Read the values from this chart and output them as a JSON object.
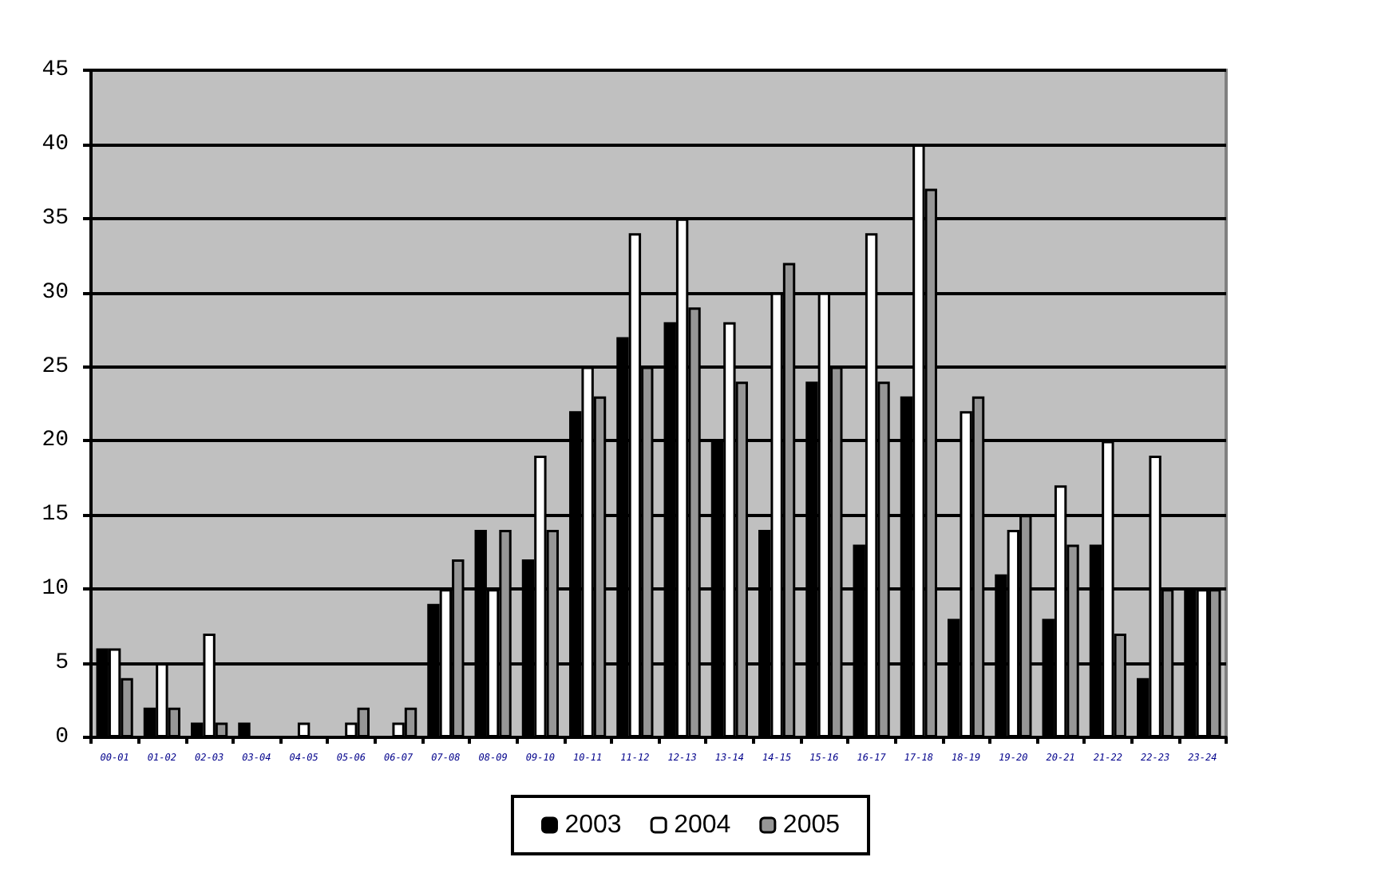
{
  "chart_data": {
    "type": "bar",
    "categories": [
      "00-01",
      "01-02",
      "02-03",
      "03-04",
      "04-05",
      "05-06",
      "06-07",
      "07-08",
      "08-09",
      "09-10",
      "10-11",
      "11-12",
      "12-13",
      "13-14",
      "14-15",
      "15-16",
      "16-17",
      "17-18",
      "18-19",
      "19-20",
      "20-21",
      "21-22",
      "22-23",
      "23-24"
    ],
    "series": [
      {
        "name": "2003",
        "color": "#000000",
        "values": [
          6,
          2,
          1,
          1,
          0,
          0,
          0,
          9,
          14,
          12,
          22,
          27,
          28,
          20,
          14,
          24,
          13,
          23,
          8,
          11,
          8,
          13,
          4,
          10
        ]
      },
      {
        "name": "2004",
        "color": "#ffffff",
        "values": [
          6,
          5,
          7,
          0,
          1,
          1,
          1,
          10,
          10,
          19,
          25,
          34,
          35,
          28,
          30,
          30,
          34,
          40,
          22,
          14,
          17,
          20,
          19,
          10
        ]
      },
      {
        "name": "2005",
        "color": "#969696",
        "values": [
          4,
          2,
          1,
          0,
          0,
          2,
          2,
          12,
          14,
          14,
          23,
          25,
          29,
          24,
          32,
          25,
          24,
          37,
          23,
          15,
          13,
          7,
          10,
          10
        ]
      }
    ],
    "ylim": [
      0,
      45
    ],
    "yticks": [
      0,
      5,
      10,
      15,
      20,
      25,
      30,
      35,
      40,
      45
    ],
    "grid": "y",
    "legend": "bottom"
  }
}
